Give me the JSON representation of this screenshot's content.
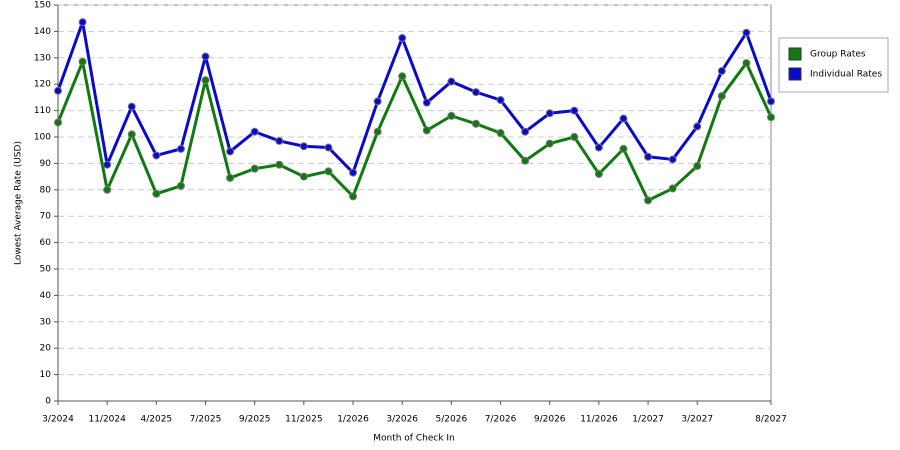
{
  "chart_data": {
    "type": "line",
    "x_label": "Month of Check In",
    "y_label": "Lowest Average Rate (USD)",
    "categories": [
      "3/2024",
      null,
      "11/2024",
      null,
      "4/2025",
      null,
      "7/2025",
      null,
      "9/2025",
      null,
      "11/2025",
      null,
      "1/2026",
      null,
      "3/2026",
      null,
      "5/2026",
      null,
      "7/2026",
      null,
      "9/2026",
      null,
      "11/2026",
      null,
      "1/2027",
      null,
      "3/2027",
      null,
      null,
      "8/2027"
    ],
    "series": [
      {
        "name": "Group Rates",
        "color": "#0f7a0f",
        "values": [
          105.5,
          128.5,
          80,
          101,
          78.5,
          81.5,
          121.5,
          84.5,
          88,
          89.5,
          85,
          87,
          77.5,
          102,
          123,
          102.5,
          108,
          105,
          101.5,
          91,
          97.5,
          100,
          86,
          95.5,
          76,
          80.5,
          89,
          115.5,
          128,
          107.5
        ]
      },
      {
        "name": "Individual Rates",
        "color": "#0a0acc",
        "values": [
          117.5,
          143.5,
          89.5,
          111.5,
          93,
          95.5,
          130.5,
          94.5,
          102,
          98.5,
          96.5,
          96,
          86.5,
          113.5,
          137.5,
          113,
          121,
          117,
          114,
          102,
          109,
          110,
          96,
          107,
          92.5,
          91.5,
          104,
          125,
          139.5,
          113.5
        ]
      }
    ],
    "ylim": [
      0,
      150
    ],
    "yticks": [
      0,
      10,
      20,
      30,
      40,
      50,
      60,
      70,
      80,
      90,
      100,
      110,
      120,
      130,
      140,
      150
    ],
    "grid": true,
    "legend": "right"
  }
}
